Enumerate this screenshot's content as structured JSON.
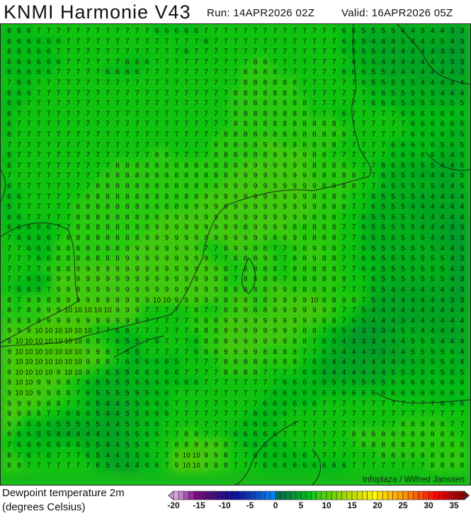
{
  "header": {
    "title": "KNMI Harmonie V43",
    "run": "Run: 14APR2026 02Z",
    "valid": "Valid: 16APR2026 05Z"
  },
  "legend": {
    "line1": "Dewpoint temperature 2m",
    "line2": "(degrees Celsius)"
  },
  "credit": "Infoplaza / Wilfred Janssen",
  "colorbar": {
    "min": -20,
    "max": 37,
    "tick_labels": [
      "-20",
      "-15",
      "-10",
      "-5",
      "0",
      "5",
      "10",
      "15",
      "20",
      "25",
      "30",
      "35"
    ],
    "colors": [
      "#d8a0d8",
      "#c080c8",
      "#a850b0",
      "#902898",
      "#780880",
      "#6a0a80",
      "#5a0a7a",
      "#4a0a78",
      "#3a0a80",
      "#2a0a88",
      "#1a0a90",
      "#100a98",
      "#0a10a0",
      "#0a20a8",
      "#0a30b0",
      "#0a40b8",
      "#0a50c8",
      "#0a60d8",
      "#0a70e8",
      "#0080ff",
      "#006a5a",
      "#00784a",
      "#00863c",
      "#009432",
      "#00a028",
      "#00ae20",
      "#00bc18",
      "#10c810",
      "#30d010",
      "#50d010",
      "#58d000",
      "#70d400",
      "#88d800",
      "#a0d800",
      "#b8dc00",
      "#c8e000",
      "#d8e400",
      "#e8ea00",
      "#f4f000",
      "#ffff00",
      "#ffe000",
      "#ffd000",
      "#ffc000",
      "#ffb000",
      "#ffa000",
      "#ff9000",
      "#ff7800",
      "#ff6000",
      "#ff4800",
      "#ff3000",
      "#ff1800",
      "#ff0000",
      "#e80000",
      "#d00000",
      "#b80000",
      "#a00000",
      "#880000"
    ],
    "under_color": "#d8a0d8",
    "over_color": "#880000"
  },
  "grid_rows": [
    "6 6 6 7 7 7 7 7 7 7 7 7 7 7 7 6 6 6 6 6 7 7 7 7 7 7 7 7 7 7 7 7 7 7 6 6 5 5 5 5 4 4 5 4 4 3 3",
    "6 6 6 6 6 6 7 7 7 7 7 7 7 7 7 7 7 7 7 7 6 7 7 7 7 7 7 7 7 7 7 7 7 7 6 6 5 4 4 4 5 4 4 4 5 4 3",
    "6 6 6 6 6 7 7 7 7 7 7 7 7 7 7 7 7 7 6 7 7 7 7 7 7 7 7 7 7 7 7 7 7 7 6 5 5 5 4 4 4 4 4 4 3 3 3",
    "6 6 6 6 6 6 7 7 7 7 7 7 6 6 6 7 7 7 7 7 7 7 7 7 7 8 8 7 7 7 7 7 7 7 7 6 5 5 4 4 4 4 4 4 4 3 3",
    "6 6 6 6 6 7 7 7 7 7 6 6 6 6 7 7 7 7 7 7 7 7 7 7 8 8 8 8 7 7 7 7 7 7 6 6 6 5 5 4 4 4 4 4 4 4 3",
    "7 6 6 7 7 7 7 7 7 7 7 7 7 7 7 7 7 7 7 7 7 7 7 7 8 8 8 8 8 8 7 7 7 7 7 7 6 5 5 5 5 5 4 4 4 4 4",
    "6 6 6 7 7 7 7 7 7 7 7 7 7 7 7 7 7 7 7 7 7 7 7 8 8 8 8 8 8 8 7 7 7 7 7 7 7 6 6 5 5 5 5 5 4 4 4",
    "6 6 7 7 7 7 7 7 7 7 7 7 7 7 7 7 7 7 7 7 7 7 7 8 8 8 8 8 8 8 8 7 7 7 7 7 7 6 6 6 5 5 5 5 5 5 5",
    "6 7 7 7 7 7 7 7 7 7 7 7 7 7 7 7 7 7 7 7 7 7 7 8 8 8 8 8 8 8 8 7 7 7 6 7 7 7 7 7 6 6 6 6 6 6 6",
    "6 7 7 7 7 7 7 7 7 7 7 7 7 7 7 7 7 7 7 7 7 7 7 8 8 8 8 8 8 8 8 8 8 8 7 7 7 7 7 7 7 6 6 6 6 6 5",
    "6 7 7 7 7 7 7 7 7 7 7 7 7 7 7 7 7 7 7 7 7 7 8 8 8 8 8 8 8 8 8 8 8 8 8 7 7 7 7 7 7 6 6 6 6 5 5",
    "7 7 7 7 7 7 7 7 7 7 7 7 7 7 7 7 7 7 7 7 7 8 8 8 8 8 9 9 8 8 8 8 8 8 7 7 7 7 7 6 6 6 6 6 5 6 5",
    "6 7 7 7 7 7 7 7 7 7 7 7 7 7 7 8 8 7 7 7 7 8 8 8 8 8 8 9 9 9 9 8 8 7 7 7 7 7 7 6 6 6 6 6 5 4 5",
    "6 7 7 7 7 7 7 7 7 7 7 8 8 8 8 8 8 8 8 8 8 8 8 8 9 9 9 9 9 9 9 8 8 8 8 7 7 7 6 6 5 5 5 5 4 4 5",
    "7 7 7 7 7 7 7 7 7 7 8 8 8 8 8 8 8 8 8 8 8 8 8 9 9 9 9 9 9 9 9 8 8 8 8 8 7 7 6 5 5 5 4 4 4 4 5",
    "6 7 7 7 7 7 7 7 7 8 8 8 8 8 8 8 8 8 8 8 8 8 9 9 9 9 9 9 9 9 9 9 8 8 8 8 7 7 6 5 5 5 5 5 4 4 5",
    "6 6 7 7 7 7 7 7 8 8 8 8 8 8 8 8 8 8 8 8 9 9 9 9 9 9 9 9 9 9 9 8 8 8 8 7 7 6 5 5 5 5 4 4 4 4 4",
    "5 7 7 7 7 7 7 8 8 8 8 8 8 8 8 8 8 8 8 9 9 9 9 9 9 9 9 9 9 9 9 9 8 8 8 7 7 6 5 5 5 4 4 4 4 4 4",
    "6 6 7 7 7 7 7 8 8 8 8 8 8 8 8 8 9 9 9 9 9 9 9 9 9 9 9 9 9 9 9 8 8 8 7 7 6 5 5 5 5 5 4 4 4 4 4",
    "6 6 6 6 6 7 7 8 8 8 8 8 8 8 8 9 9 9 9 9 9 9 9 9 8 9 9 9 9 8 8 8 8 8 7 7 6 5 5 5 5 5 4 4 4 3 3",
    "7 6 6 6 6 7 8 8 8 8 8 8 8 8 9 9 9 9 9 9 9 9 9 9 9 9 9 8 9 9 8 8 8 8 7 7 6 5 5 5 5 5 5 4 4 3 3",
    "7 7 6 6 6 8 8 8 8 8 8 8 8 9 9 9 9 9 9 9 7 7 8 9 9 8 8 7 7 8 8 9 8 8 7 7 6 5 5 5 5 5 5 5 4 4 3",
    "7 7 7 6 6 8 8 8 8 8 8 8 9 9 9 9 9 9 9 9 9 7 7 8 8 8 9 8 7 8 8 9 8 8 7 7 6 6 5 5 5 5 5 5 5 4 3",
    "7 7 7 7 8 8 8 9 9 9 9 9 9 9 9 9 9 9 9 9 9 9 8 7 8 8 8 8 7 8 8 8 8 8 7 7 6 6 5 5 5 5 5 5 5 4 3",
    "7 7 6 5 6 9 9 9 9 9 9 9 9 9 9 9 9 9 9 9 9 9 8 7 8 8 8 8 7 8 8 8 8 8 8 7 7 6 5 5 5 5 5 5 5 4 3",
    "7 5 6 5 7 9 9 9 9 9 9 9 9 9 9 9 9 9 9 9 9 9 8 8 8 8 8 9 9 8 8 8 8 8 7 7 7 5 5 4 4 4 4 4 4 4 3",
    "8 7 8 8 8 8 9 9 9 9 9 9 9 9 9 10 10 9 9 9 9 9 8 9 9 8 8 9 9 9 9 10 8 8 8 8 7 5 4 4 4 4 4 4 4 3 3",
    "8 7 8 8 9 9 10 10 10 10 10 9 9 9 7 7 7 7 7 8 7 7 8 8 9 8 8 9 9 9 9 9 9 8 7 7 5 4 4 4 4 4 4 4 4 4 4",
    "8 8 8 8 9 9 9 9 9 9 9 9 9 8 7 7 7 7 7 8 8 8 9 9 9 9 9 9 9 9 9 9 8 8 7 6 5 4 4 4 3 4 4 4 4 4 4",
    "9 9 9 10 10 10 10 10 10 7 7 6 6 7 7 7 7 7 7 8 8 8 9 9 9 9 9 9 9 9 8 8 7 6 5 4 3 3 3 4 5 5 4 4 4 4 4",
    "9 10 10 10 10 10 10 10 8 8 7 6 5 5 7 6 7 7 7 6 8 8 9 9 9 9 9 9 9 8 8 7 6 5 4 3 3 3 4 4 4 5 5 5 4 4 4",
    "9 10 10 10 10 10 10 10 9 9 8 7 6 5 7 7 7 7 7 6 8 8 9 9 9 9 8 8 8 8 7 7 6 5 4 4 4 3 3 4 4 5 5 5 5 6 4",
    "9 10 10 10 10 10 10 10 9 9 8 7 6 5 6 6 6 5 7 7 7 7 8 8 8 8 8 8 8 8 7 6 5 4 4 4 4 4 4 4 4 5 5 5 5 6 4",
    "9 10 10 10 10 9 10 10 8 7 6 5 5 6 6 6 6 6 7 7 7 7 8 8 8 8 7 7 7 7 6 6 4 4 4 4 4 4 4 5 5 5 5 6 5 5 5",
    "9 10 10 9 9 9 8 7 6 5 5 5 5 6 5 6 6 6 6 6 7 7 7 7 7 7 7 7 6 6 6 6 5 5 5 5 5 5 5 6 6 6 6 6 6 6 6",
    "9 10 10 9 9 8 8 7 6 5 5 5 5 5 5 6 6 7 7 7 7 7 7 7 7 7 7 6 6 6 6 6 6 6 6 6 6 6 6 6 6 6 6 6 6 6 6",
    "9 9 9 9 8 8 7 7 6 5 4 4 5 5 6 6 6 7 7 7 7 7 7 7 7 7 6 6 6 6 6 6 7 7 7 7 7 7 7 7 7 7 7 7 6 6 6",
    "9 9 8 8 7 7 6 6 6 5 4 4 5 5 6 6 6 7 7 7 7 7 7 7 7 6 6 6 6 7 7 7 7 7 7 7 7 7 7 7 7 7 7 7 7 7 7",
    "9 8 6 6 6 5 5 5 5 5 4 4 5 5 6 6 7 7 7 7 7 7 7 7 6 6 6 6 7 7 7 7 7 7 7 7 7 7 7 7 8 8 8 8 8 7 7",
    "8 6 6 5 5 4 4 4 4 4 4 4 5 5 6 6 7 7 8 8 7 7 7 6 6 6 6 6 7 7 7 7 7 7 7 8 8 8 8 8 8 8 8 8 8 8 7",
    "7 6 6 6 6 6 6 6 5 5 4 4 5 5 6 7 7 8 8 9 9 9 8 7 6 6 6 6 6 7 7 7 7 7 7 7 8 8 8 8 8 8 8 8 8 8 8",
    "8 7 6 7 6 7 7 7 6 5 4 4 5 5 6 7 7 9 10 10 9 9 8 7 7 6 6 6 6 6 6 7 7 7 7 7 7 7 8 8 8 8 8 8 8 8 8",
    "8 8 7 7 7 7 7 7 7 6 5 4 4 4 6 6 7 9 10 10 9 8 8 7 7 7 6 6 6 6 6 6 6 6 6 7 7 7 7 7 7 7 7 8 8 8 8"
  ]
}
